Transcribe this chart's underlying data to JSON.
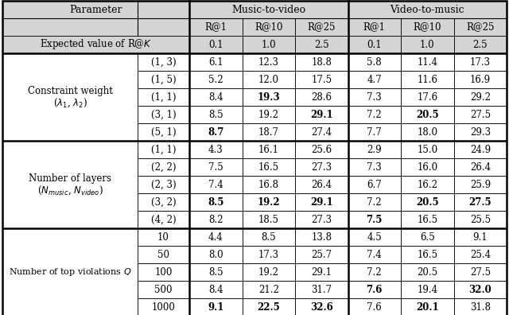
{
  "section1_label_line1": "Constraint weight",
  "section1_label_line2": "($\\lambda_1$, $\\lambda_2$)",
  "section1_rows": [
    [
      "(1, 3)",
      "6.1",
      "12.3",
      "18.8",
      "5.8",
      "11.4",
      "17.3"
    ],
    [
      "(1, 5)",
      "5.2",
      "12.0",
      "17.5",
      "4.7",
      "11.6",
      "16.9"
    ],
    [
      "(1, 1)",
      "8.4",
      "19.3",
      "28.6",
      "7.3",
      "17.6",
      "29.2"
    ],
    [
      "(3, 1)",
      "8.5",
      "19.2",
      "29.1",
      "7.2",
      "20.5",
      "27.5"
    ],
    [
      "(5, 1)",
      "8.7",
      "18.7",
      "27.4",
      "7.7",
      "18.0",
      "29.3"
    ]
  ],
  "section1_bold": [
    [
      false,
      false,
      false,
      false,
      false,
      false,
      false
    ],
    [
      false,
      false,
      false,
      false,
      false,
      false,
      false
    ],
    [
      false,
      true,
      false,
      false,
      false,
      false,
      false
    ],
    [
      false,
      false,
      true,
      false,
      true,
      false,
      false
    ],
    [
      true,
      false,
      false,
      false,
      false,
      false,
      true
    ]
  ],
  "section2_label_line1": "Number of layers",
  "section2_label_line2": "($N_{music}$, $N_{video}$)",
  "section2_rows": [
    [
      "(1, 1)",
      "4.3",
      "16.1",
      "25.6",
      "2.9",
      "15.0",
      "24.9"
    ],
    [
      "(2, 2)",
      "7.5",
      "16.5",
      "27.3",
      "7.3",
      "16.0",
      "26.4"
    ],
    [
      "(2, 3)",
      "7.4",
      "16.8",
      "26.4",
      "6.7",
      "16.2",
      "25.9"
    ],
    [
      "(3, 2)",
      "8.5",
      "19.2",
      "29.1",
      "7.2",
      "20.5",
      "27.5"
    ],
    [
      "(4, 2)",
      "8.2",
      "18.5",
      "27.3",
      "7.5",
      "16.5",
      "25.5"
    ]
  ],
  "section2_bold": [
    [
      false,
      false,
      false,
      false,
      false,
      false,
      false
    ],
    [
      false,
      false,
      false,
      false,
      false,
      false,
      false
    ],
    [
      false,
      false,
      false,
      false,
      false,
      false,
      false
    ],
    [
      true,
      true,
      true,
      false,
      true,
      true,
      false
    ],
    [
      false,
      false,
      false,
      true,
      false,
      false,
      false
    ]
  ],
  "section3_label": "Number of top violations $Q$",
  "section3_rows": [
    [
      "10",
      "4.4",
      "8.5",
      "13.8",
      "4.5",
      "6.5",
      "9.1"
    ],
    [
      "50",
      "8.0",
      "17.3",
      "25.7",
      "7.4",
      "16.5",
      "25.4"
    ],
    [
      "100",
      "8.5",
      "19.2",
      "29.1",
      "7.2",
      "20.5",
      "27.5"
    ],
    [
      "500",
      "8.4",
      "21.2",
      "31.7",
      "7.6",
      "19.4",
      "32.0"
    ],
    [
      "1000",
      "9.1",
      "22.5",
      "32.6",
      "7.6",
      "20.1",
      "31.8"
    ]
  ],
  "section3_bold": [
    [
      false,
      false,
      false,
      false,
      false,
      false,
      false
    ],
    [
      false,
      false,
      false,
      false,
      false,
      false,
      false
    ],
    [
      false,
      false,
      false,
      false,
      false,
      false,
      false
    ],
    [
      false,
      false,
      false,
      true,
      false,
      true,
      false
    ],
    [
      true,
      true,
      true,
      false,
      true,
      false,
      false
    ]
  ],
  "expected_vals": [
    "0.1",
    "1.0",
    "2.5",
    "0.1",
    "1.0",
    "2.5"
  ],
  "bg_gray": "#d4d4d4",
  "bg_white": "#ffffff",
  "col_headers": [
    "R@1",
    "R@10",
    "R@25",
    "R@1",
    "R@10",
    "R@25"
  ]
}
